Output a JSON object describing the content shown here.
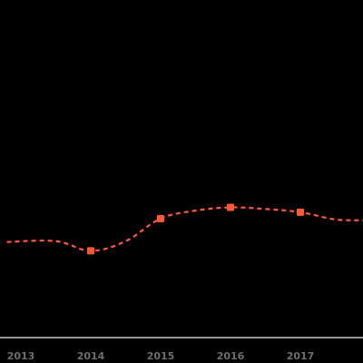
{
  "chart_data": {
    "type": "line",
    "title": "",
    "xlabel": "",
    "ylabel": "",
    "x_tick_labels": [
      "2013",
      "2014",
      "2015",
      "2016",
      "2017",
      "2"
    ],
    "series": [
      {
        "line_style": "dashed",
        "x": [
          2012.8,
          2013.5,
          2014,
          2014.5,
          2015,
          2015.5,
          2016,
          2016.5,
          2017,
          2017.5,
          2017.9
        ],
        "y": [
          59.5,
          60,
          54,
          60,
          74,
          79,
          81,
          80,
          78,
          73.5,
          73
        ],
        "markers_at": [
          2013,
          2014,
          2015,
          2016,
          2017
        ]
      }
    ],
    "x_range": [
      2012.7,
      2017.9
    ],
    "ylim": [
      0,
      210
    ],
    "grid": false,
    "legend": "none",
    "colors": {
      "background": "#000000",
      "line": "#ff5a36",
      "axis": "#c8c8c8",
      "tick_text": "#6e6e6e"
    }
  }
}
